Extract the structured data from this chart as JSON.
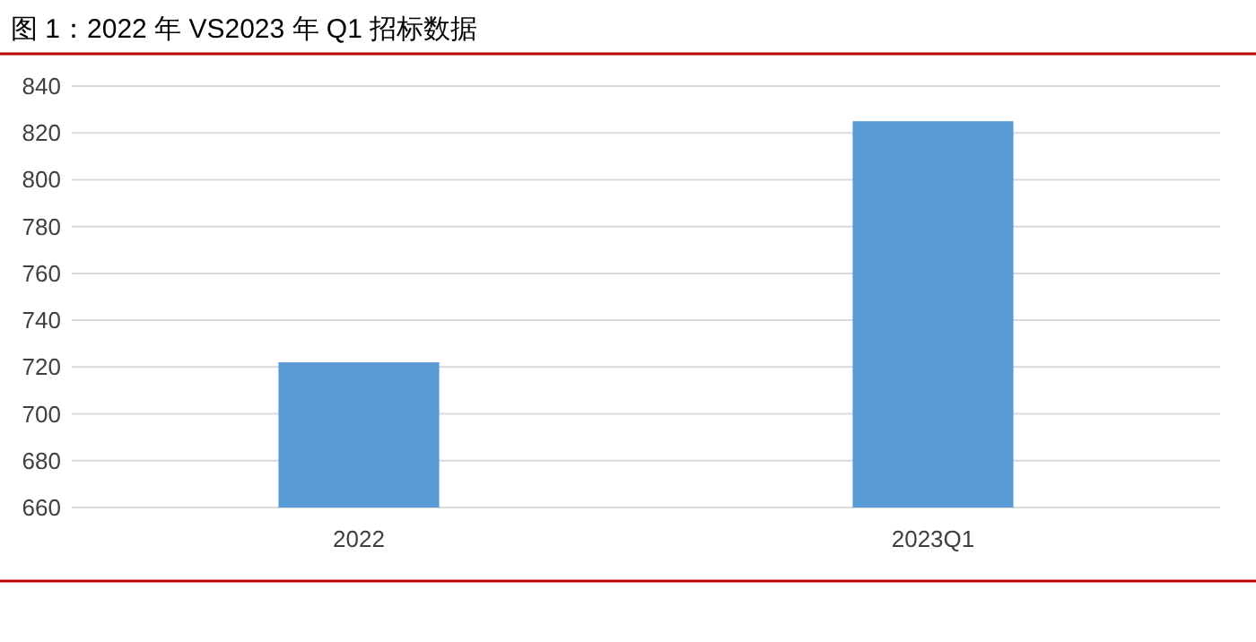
{
  "chart_data": {
    "type": "bar",
    "title": "图 1：2022 年 VS2023 年 Q1 招标数据",
    "categories": [
      "2022",
      "2023Q1"
    ],
    "values": [
      722,
      825
    ],
    "color": "#5b9bd5",
    "ylim": [
      660,
      840
    ],
    "yticks": [
      660,
      680,
      700,
      720,
      740,
      760,
      780,
      800,
      820,
      840
    ],
    "grid": "y"
  }
}
